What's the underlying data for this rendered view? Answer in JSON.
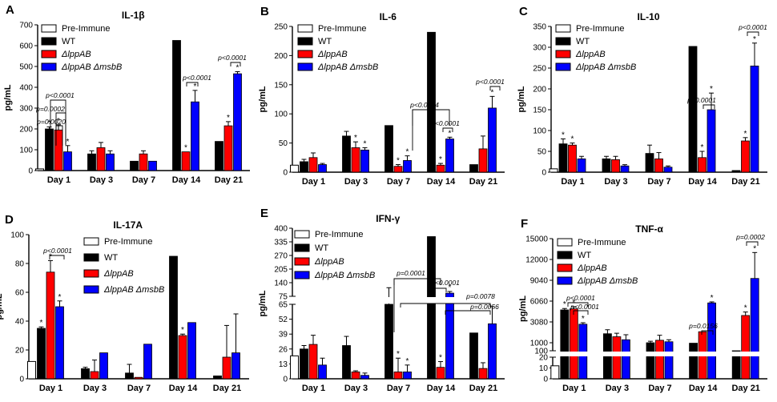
{
  "colors": {
    "pre_immune": "#ffffff",
    "wt": "#000000",
    "lppab": "#ff0000",
    "lppab_msbb": "#0000ff"
  },
  "legend": [
    "Pre-Immune",
    "WT",
    "ΔlppAB",
    "ΔlppAB ΔmsbB"
  ],
  "chart_data": [
    {
      "type": "bar",
      "letter": "A",
      "title": "IL-1β",
      "ylabel": "pg/mL",
      "ylim": [
        0,
        700
      ],
      "yticks": [
        "0",
        "100",
        "200",
        "300",
        "400",
        "500",
        "600",
        "700"
      ],
      "categories": [
        "Day 1",
        "Day 3",
        "Day 7",
        "Day 14",
        "Day 21"
      ],
      "show_pre_immune": true,
      "pre_immune": 8,
      "series": [
        {
          "name": "WT",
          "values": [
            200,
            80,
            45,
            625,
            140
          ],
          "errors": [
            10,
            15,
            0,
            0,
            0
          ],
          "stars": [
            true,
            false,
            false,
            false,
            false
          ]
        },
        {
          "name": "ΔlppAB",
          "values": [
            195,
            110,
            80,
            90,
            215
          ],
          "errors": [
            25,
            25,
            15,
            0,
            20
          ],
          "stars": [
            true,
            false,
            false,
            true,
            true
          ]
        },
        {
          "name": "ΔlppAB ΔmsbB",
          "values": [
            90,
            80,
            45,
            330,
            465
          ],
          "errors": [
            30,
            15,
            0,
            55,
            10
          ],
          "stars": [
            true,
            false,
            false,
            true,
            true
          ]
        }
      ],
      "annotations": [
        "p<0.0001",
        "p=0.0002",
        "p=0.0020",
        "p<0.0001",
        "p<0.0001"
      ]
    },
    {
      "type": "bar",
      "letter": "B",
      "title": "IL-6",
      "ylabel": "pg/mL",
      "ylim": [
        0,
        250
      ],
      "yticks": [
        "0",
        "50",
        "100",
        "150",
        "200",
        "250"
      ],
      "categories": [
        "Day 1",
        "Day 3",
        "Day 7",
        "Day 14",
        "Day 21"
      ],
      "show_pre_immune": true,
      "pre_immune": 12,
      "series": [
        {
          "name": "WT",
          "values": [
            18,
            62,
            80,
            240,
            13
          ],
          "errors": [
            4,
            8,
            0,
            0,
            0
          ],
          "stars": [
            false,
            false,
            false,
            false,
            false
          ]
        },
        {
          "name": "ΔlppAB",
          "values": [
            25,
            42,
            10,
            12,
            40
          ],
          "errors": [
            8,
            10,
            3,
            3,
            22
          ],
          "stars": [
            false,
            true,
            true,
            true,
            false
          ]
        },
        {
          "name": "ΔlppAB ΔmsbB",
          "values": [
            13,
            38,
            20,
            57,
            110
          ],
          "errors": [
            2,
            4,
            8,
            3,
            20
          ],
          "stars": [
            false,
            true,
            true,
            true,
            true
          ]
        }
      ],
      "annotations": [
        "p<0.0004",
        "p<0.0001",
        "p<0.0001"
      ]
    },
    {
      "type": "bar",
      "letter": "C",
      "title": "IL-10",
      "ylabel": "pg/mL",
      "ylim": [
        0,
        350
      ],
      "yticks": [
        "0",
        "50",
        "100",
        "150",
        "200",
        "250",
        "300",
        "350"
      ],
      "categories": [
        "Day 1",
        "Day 3",
        "Day 7",
        "Day 14",
        "Day 21"
      ],
      "show_pre_immune": true,
      "pre_immune": 8,
      "series": [
        {
          "name": "WT",
          "values": [
            68,
            32,
            45,
            302,
            4
          ],
          "errors": [
            12,
            6,
            20,
            0,
            0
          ],
          "stars": [
            true,
            false,
            false,
            false,
            false
          ]
        },
        {
          "name": "ΔlppAB",
          "values": [
            65,
            30,
            32,
            35,
            75
          ],
          "errors": [
            5,
            8,
            15,
            15,
            8
          ],
          "stars": [
            true,
            false,
            false,
            true,
            true
          ]
        },
        {
          "name": "ΔlppAB ΔmsbB",
          "values": [
            32,
            15,
            12,
            150,
            255
          ],
          "errors": [
            6,
            3,
            3,
            40,
            55
          ],
          "stars": [
            false,
            false,
            false,
            true,
            true
          ]
        }
      ],
      "annotations": [
        "p<0.0001",
        "p<0.0001"
      ]
    },
    {
      "type": "bar",
      "letter": "D",
      "title": "IL-17A",
      "ylabel": "pg/mL",
      "ylim": [
        0,
        100
      ],
      "yticks": [
        "0",
        "20",
        "40",
        "60",
        "80",
        "100"
      ],
      "categories": [
        "Day 1",
        "Day 3",
        "Day 7",
        "Day 14",
        "Day 21"
      ],
      "show_pre_immune": true,
      "pre_immune": 12,
      "series": [
        {
          "name": "WT",
          "values": [
            35,
            7,
            4,
            85,
            2
          ],
          "errors": [
            1,
            1,
            6,
            0,
            0
          ],
          "stars": [
            true,
            false,
            false,
            false,
            false
          ]
        },
        {
          "name": "ΔlppAB",
          "values": [
            74,
            5,
            1,
            30,
            15
          ],
          "errors": [
            8,
            8,
            0,
            1,
            22
          ],
          "stars": [
            true,
            false,
            false,
            true,
            false
          ]
        },
        {
          "name": "ΔlppAB ΔmsbB",
          "values": [
            50,
            18,
            24,
            39,
            18
          ],
          "errors": [
            4,
            0,
            0,
            0,
            27
          ],
          "stars": [
            true,
            false,
            false,
            false,
            false
          ]
        }
      ],
      "annotations": [
        "p<0.0001"
      ]
    },
    {
      "type": "bar",
      "letter": "E",
      "title": "IFN-γ",
      "ylabel": "pg/mL",
      "broken_axis": true,
      "lower_ylim": [
        0,
        65
      ],
      "lower_ticks": [
        "0",
        "13",
        "26",
        "39",
        "52",
        "65"
      ],
      "upper_ylim": [
        75,
        400
      ],
      "upper_ticks": [
        "75",
        "140",
        "205",
        "270",
        "335",
        "400"
      ],
      "categories": [
        "Day 1",
        "Day 3",
        "Day 7",
        "Day 14",
        "Day 21"
      ],
      "show_pre_immune": true,
      "pre_immune": 20,
      "series": [
        {
          "name": "WT",
          "values": [
            26,
            29,
            66,
            360,
            40
          ],
          "errors": [
            3,
            8,
            50,
            0,
            0
          ],
          "stars": [
            false,
            false,
            false,
            false,
            false
          ]
        },
        {
          "name": "ΔlppAB",
          "values": [
            30,
            6,
            6,
            10,
            9
          ],
          "errors": [
            8,
            1,
            12,
            5,
            5
          ],
          "stars": [
            false,
            false,
            true,
            true,
            false
          ]
        },
        {
          "name": "ΔlppAB ΔmsbB",
          "values": [
            12,
            3,
            6,
            90,
            48
          ],
          "errors": [
            6,
            2,
            6,
            8,
            15
          ],
          "stars": [
            false,
            false,
            true,
            true,
            false
          ]
        }
      ],
      "annotations": [
        "p=0.0001",
        "p<0.0001",
        "p=0.0078",
        "p=0.0056"
      ]
    },
    {
      "type": "bar",
      "letter": "F",
      "title": "TNF-α",
      "ylabel": "pg/mL",
      "broken_axis": true,
      "lower_ylim": [
        0,
        20
      ],
      "lower_ticks": [
        "0",
        "10",
        "20"
      ],
      "upper_ylim": [
        100,
        15000
      ],
      "upper_ticks": [
        "100",
        "1000",
        "3080",
        "6060",
        "9040",
        "12000",
        "15000"
      ],
      "categories": [
        "Day 1",
        "Day 3",
        "Day 7",
        "Day 14",
        "Day 21"
      ],
      "show_pre_immune": true,
      "pre_immune": 12,
      "series": [
        {
          "name": "WT",
          "values": [
            4800,
            1900,
            1000,
            950,
            100
          ],
          "errors": [
            200,
            400,
            150,
            0,
            0
          ],
          "stars": [
            true,
            false,
            false,
            false,
            false
          ]
        },
        {
          "name": "ΔlppAB",
          "values": [
            4950,
            1600,
            1250,
            2100,
            4000
          ],
          "errors": [
            300,
            350,
            500,
            0,
            500
          ],
          "stars": [
            true,
            false,
            false,
            false,
            true
          ]
        },
        {
          "name": "ΔlppAB ΔmsbB",
          "values": [
            2850,
            1300,
            1100,
            5800,
            9300
          ],
          "errors": [
            150,
            500,
            200,
            150,
            3700
          ],
          "stars": [
            true,
            false,
            false,
            true,
            true
          ]
        }
      ],
      "annotations": [
        "p<0.0001",
        "p<0.0001",
        "p=0.0156",
        "p=0.0002"
      ]
    }
  ]
}
